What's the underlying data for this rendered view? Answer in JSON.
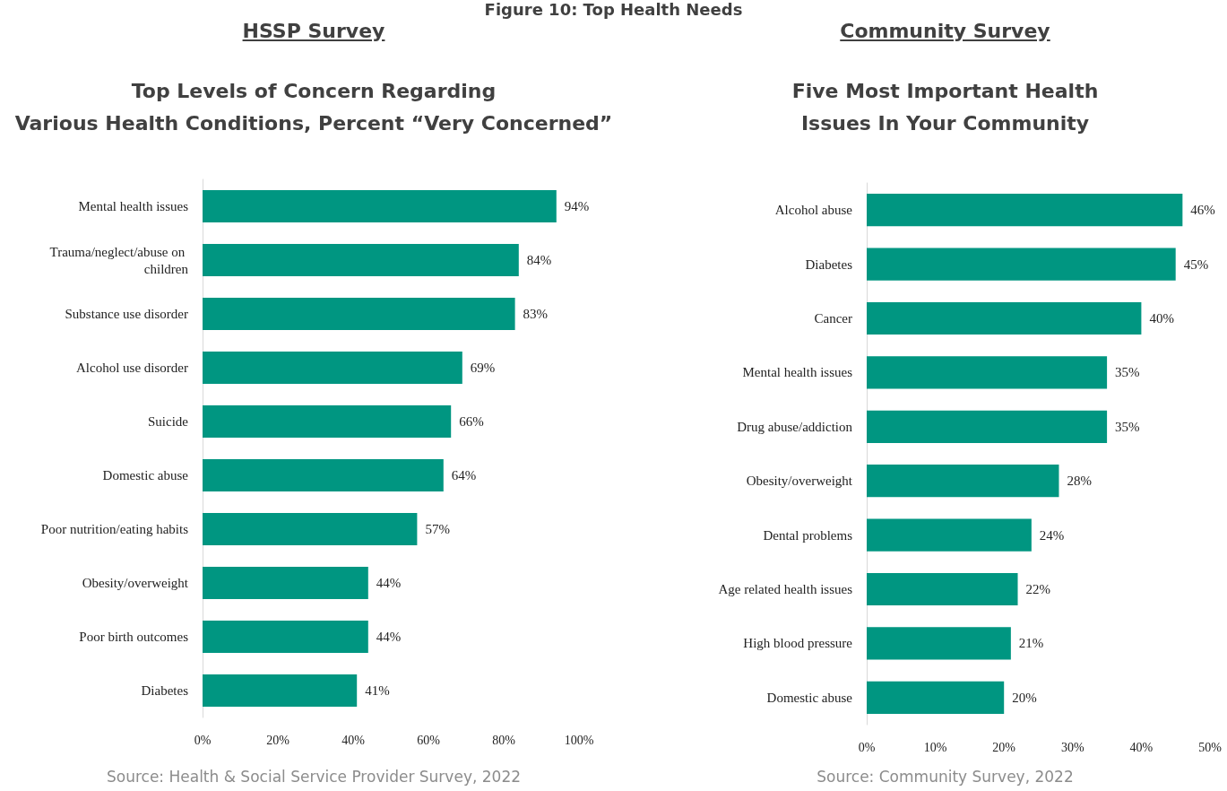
{
  "chart_data": [
    {
      "type": "bar",
      "orientation": "horizontal",
      "subtitle": "HSSP Survey",
      "title": "Top Levels of Concern Regarding\nVarious Health Conditions, Percent “Very Concerned”",
      "categories": [
        "Mental health issues",
        "Trauma/neglect/abuse on children",
        "Substance use disorder",
        "Alcohol use disorder",
        "Suicide",
        "Domestic abuse",
        "Poor nutrition/eating habits",
        "Obesity/overweight",
        "Poor birth outcomes",
        "Diabetes"
      ],
      "values": [
        94,
        84,
        83,
        69,
        66,
        64,
        57,
        44,
        44,
        41
      ],
      "color": "#009681",
      "value_labels": [
        "94%",
        "84%",
        "83%",
        "69%",
        "66%",
        "64%",
        "57%",
        "44%",
        "44%",
        "41%"
      ],
      "xlim": [
        0,
        100
      ],
      "xticks": [
        {
          "value": 0,
          "label": "0%"
        },
        {
          "value": 20,
          "label": "20%"
        },
        {
          "value": 40,
          "label": "40%"
        },
        {
          "value": 60,
          "label": "60%"
        },
        {
          "value": 80,
          "label": "80%"
        },
        {
          "value": 100,
          "label": "100%"
        }
      ],
      "grid": false,
      "annotations": [
        "Figure 10: Top Health Needs",
        "Source: Health & Social Service Provider Survey, 2022"
      ]
    },
    {
      "type": "bar",
      "orientation": "horizontal",
      "subtitle": "Community Survey",
      "title": "Five Most Important Health\nIssues In Your Community",
      "categories": [
        "Alcohol abuse",
        "Diabetes",
        "Cancer",
        "Mental health issues",
        "Drug abuse/addiction",
        "Obesity/overweight",
        "Dental problems",
        "Age related health issues",
        "High blood pressure",
        "Domestic abuse"
      ],
      "values": [
        46,
        45,
        40,
        35,
        35,
        28,
        24,
        22,
        21,
        20
      ],
      "color": "#009681",
      "value_labels": [
        "46%",
        "45%",
        "40%",
        "35%",
        "35%",
        "28%",
        "24%",
        "22%",
        "21%",
        "20%"
      ],
      "xlim": [
        0,
        50
      ],
      "xticks": [
        {
          "value": 0,
          "label": "0%"
        },
        {
          "value": 10,
          "label": "10%"
        },
        {
          "value": 20,
          "label": "20%"
        },
        {
          "value": 30,
          "label": "30%"
        },
        {
          "value": 40,
          "label": "40%"
        },
        {
          "value": 50,
          "label": "50%"
        }
      ],
      "grid": false,
      "annotations": [
        "Source: Community Survey, 2022"
      ]
    }
  ]
}
